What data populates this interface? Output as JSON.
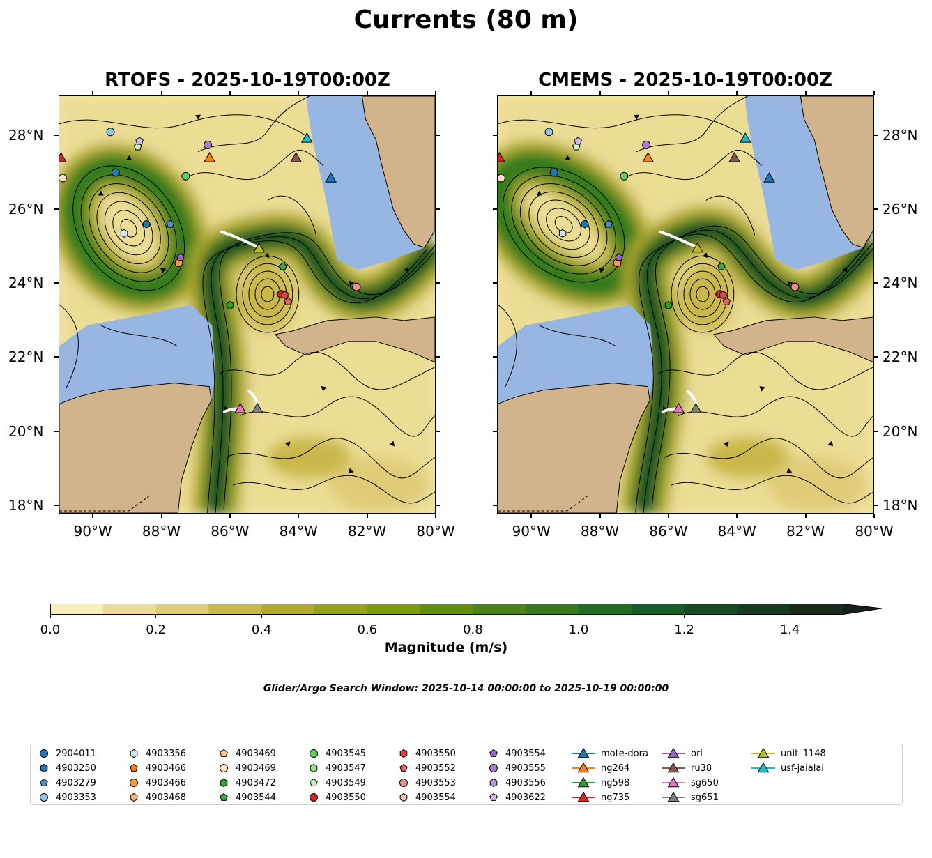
{
  "title": "Currents (80 m)",
  "panels": [
    {
      "title": "RTOFS - 2025-10-19T00:00Z",
      "lat_side": "left"
    },
    {
      "title": "CMEMS - 2025-10-19T00:00Z",
      "lat_side": "right"
    }
  ],
  "map_extent": {
    "lon": [
      -91,
      -80
    ],
    "lat": [
      17.77,
      29.07
    ]
  },
  "lat_ticks": [
    {
      "v": 28,
      "label": "28°N"
    },
    {
      "v": 26,
      "label": "26°N"
    },
    {
      "v": 24,
      "label": "24°N"
    },
    {
      "v": 22,
      "label": "22°N"
    },
    {
      "v": 20,
      "label": "20°N"
    },
    {
      "v": 18,
      "label": "18°N"
    }
  ],
  "lon_ticks": [
    {
      "v": -90,
      "label": "90°W"
    },
    {
      "v": -88,
      "label": "88°W"
    },
    {
      "v": -86,
      "label": "86°W"
    },
    {
      "v": -84,
      "label": "84°W"
    },
    {
      "v": -82,
      "label": "82°W"
    },
    {
      "v": -80,
      "label": "80°W"
    }
  ],
  "colorbar": {
    "label": "Magnitude (m/s)",
    "range": [
      0,
      1.5
    ],
    "ticks": [
      "0.0",
      "0.2",
      "0.4",
      "0.6",
      "0.8",
      "1.0",
      "1.2",
      "1.4"
    ],
    "colors": [
      "#f6efb7",
      "#ecdc98",
      "#dfcb78",
      "#c9b84a",
      "#b2ab30",
      "#96a11c",
      "#7d9a10",
      "#648e10",
      "#4d8216",
      "#357a1e",
      "#1f6e22",
      "#155e26",
      "#144d26",
      "#173b22",
      "#1a2b1c"
    ],
    "extend_color": "#16201a"
  },
  "subtitle": "Glider/Argo Search Window: 2025-10-14 00:00:00 to 2025-10-19 00:00:00",
  "platforms": [
    {
      "name": "2904011",
      "shape": "circle",
      "color": "#1f77b4",
      "lon": -89.35,
      "lat": 27.0
    },
    {
      "name": "4903250",
      "shape": "hexagon",
      "color": "#1f77b4",
      "lon": -88.45,
      "lat": 25.6
    },
    {
      "name": "4903279",
      "shape": "pentagon",
      "color": "#4a90c8",
      "lon": -87.75,
      "lat": 25.6
    },
    {
      "name": "4903353",
      "shape": "circle",
      "color": "#8ec7ea",
      "lon": -89.5,
      "lat": 28.1
    },
    {
      "name": "4903356",
      "shape": "hexagon",
      "color": "#cde9fb",
      "lon": -89.1,
      "lat": 25.35
    },
    {
      "name": "4903466",
      "shape": "pentagon",
      "color": "#ff7f0e"
    },
    {
      "name": "4903466",
      "shape": "circle",
      "color": "#ff9a3a",
      "lon": -87.5,
      "lat": 24.55
    },
    {
      "name": "4903468",
      "shape": "hexagon",
      "color": "#ffb06a"
    },
    {
      "name": "4903469",
      "shape": "pentagon",
      "color": "#ffc68f"
    },
    {
      "name": "4903469",
      "shape": "circle",
      "color": "#ffe0c0",
      "lon": -90.9,
      "lat": 26.85
    },
    {
      "name": "4903472",
      "shape": "hexagon",
      "color": "#2ca02c",
      "lon": -86.0,
      "lat": 23.4
    },
    {
      "name": "4903544",
      "shape": "pentagon",
      "color": "#3aa83a",
      "lon": -84.45,
      "lat": 24.45
    },
    {
      "name": "4903545",
      "shape": "circle",
      "color": "#6acc64",
      "lon": -87.3,
      "lat": 26.9
    },
    {
      "name": "4903547",
      "shape": "hexagon",
      "color": "#98df8a"
    },
    {
      "name": "4903549",
      "shape": "pentagon",
      "color": "#c8f5c0",
      "lon": -88.7,
      "lat": 27.7
    },
    {
      "name": "4903550",
      "shape": "circle",
      "color": "#d62728",
      "lon": -84.5,
      "lat": 23.7
    },
    {
      "name": "4903550",
      "shape": "hexagon",
      "color": "#e04444",
      "lon": -84.4,
      "lat": 23.68
    },
    {
      "name": "4903552",
      "shape": "pentagon",
      "color": "#e86060",
      "lon": -84.3,
      "lat": 23.5
    },
    {
      "name": "4903553",
      "shape": "circle",
      "color": "#f08f8f",
      "lon": -82.3,
      "lat": 23.9
    },
    {
      "name": "4903554",
      "shape": "hexagon",
      "color": "#ffc0c0"
    },
    {
      "name": "4903554",
      "shape": "pentagon",
      "color": "#9467bd",
      "lon": -87.45,
      "lat": 24.7
    },
    {
      "name": "4903555",
      "shape": "circle",
      "color": "#a37fcf",
      "lon": -86.65,
      "lat": 27.75
    },
    {
      "name": "4903556",
      "shape": "hexagon",
      "color": "#b497dc"
    },
    {
      "name": "4903622",
      "shape": "pentagon",
      "color": "#cfb8f0",
      "lon": -88.65,
      "lat": 27.85
    },
    {
      "name": "mote-dora",
      "shape": "triangle",
      "color": "#1f77b4",
      "line": true,
      "lon": -83.05,
      "lat": 26.85
    },
    {
      "name": "ng264",
      "shape": "triangle",
      "color": "#ff7f0e",
      "line": true,
      "lon": -86.6,
      "lat": 27.4
    },
    {
      "name": "ng598",
      "shape": "triangle",
      "color": "#2ca02c",
      "line": true
    },
    {
      "name": "ng735",
      "shape": "triangle",
      "color": "#d62728",
      "line": true,
      "lon": -90.95,
      "lat": 27.4
    },
    {
      "name": "ori",
      "shape": "triangle",
      "color": "#9467bd",
      "line": true
    },
    {
      "name": "ru38",
      "shape": "triangle",
      "color": "#8c564b",
      "line": true,
      "lon": -84.07,
      "lat": 27.4
    },
    {
      "name": "sg650",
      "shape": "triangle",
      "color": "#e377c2",
      "line": true,
      "lon": -85.7,
      "lat": 20.6
    },
    {
      "name": "sg651",
      "shape": "triangle",
      "color": "#7f7f7f",
      "line": true,
      "lon": -85.2,
      "lat": 20.6
    },
    {
      "name": "unit_1148",
      "shape": "triangle",
      "color": "#bcbd22",
      "line": true,
      "lon": -85.15,
      "lat": 24.95
    },
    {
      "name": "usf-jaialai",
      "shape": "triangle",
      "color": "#17becf",
      "line": true,
      "lon": -83.75,
      "lat": 27.93
    }
  ]
}
